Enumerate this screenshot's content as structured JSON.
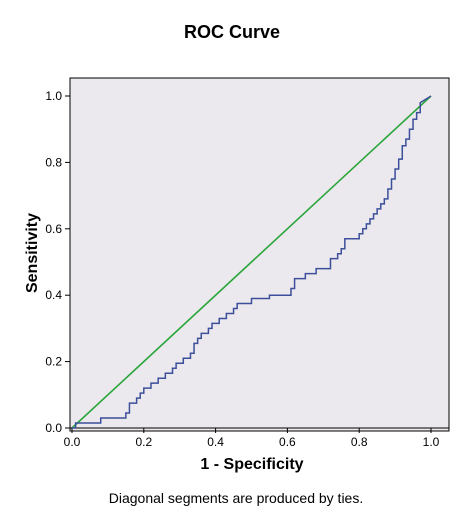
{
  "chart_data": {
    "type": "line",
    "title": "ROC Curve",
    "xlabel": "1 - Specificity",
    "ylabel": "Sensitivity",
    "footnote": "Diagonal segments are produced by ties.",
    "xlim": [
      0,
      1
    ],
    "ylim": [
      0,
      1
    ],
    "x_ticks": [
      "0.0",
      "0.2",
      "0.4",
      "0.6",
      "0.8",
      "1.0"
    ],
    "y_ticks": [
      "0.0",
      "0.2",
      "0.4",
      "0.6",
      "0.8",
      "1.0"
    ],
    "grid": false,
    "plot_background": "#ece9ee",
    "series": [
      {
        "kind": "roc",
        "color": "#3b4f9a",
        "x": [
          0.0,
          0.01,
          0.01,
          0.08,
          0.08,
          0.15,
          0.15,
          0.16,
          0.16,
          0.18,
          0.18,
          0.19,
          0.19,
          0.2,
          0.2,
          0.22,
          0.22,
          0.24,
          0.24,
          0.26,
          0.26,
          0.28,
          0.28,
          0.29,
          0.29,
          0.31,
          0.31,
          0.33,
          0.33,
          0.34,
          0.34,
          0.35,
          0.35,
          0.36,
          0.36,
          0.38,
          0.38,
          0.39,
          0.39,
          0.41,
          0.41,
          0.43,
          0.43,
          0.45,
          0.45,
          0.46,
          0.46,
          0.5,
          0.5,
          0.55,
          0.55,
          0.61,
          0.61,
          0.62,
          0.62,
          0.65,
          0.65,
          0.68,
          0.68,
          0.72,
          0.72,
          0.74,
          0.74,
          0.75,
          0.75,
          0.76,
          0.76,
          0.8,
          0.8,
          0.81,
          0.81,
          0.82,
          0.82,
          0.83,
          0.83,
          0.84,
          0.84,
          0.85,
          0.85,
          0.86,
          0.86,
          0.87,
          0.87,
          0.88,
          0.88,
          0.89,
          0.89,
          0.9,
          0.9,
          0.91,
          0.91,
          0.92,
          0.92,
          0.93,
          0.93,
          0.94,
          0.94,
          0.95,
          0.95,
          0.96,
          0.96,
          0.97,
          0.97,
          1.0
        ],
        "y": [
          0.0,
          0.0,
          0.015,
          0.015,
          0.03,
          0.03,
          0.045,
          0.045,
          0.075,
          0.075,
          0.09,
          0.09,
          0.105,
          0.105,
          0.12,
          0.12,
          0.135,
          0.135,
          0.15,
          0.15,
          0.165,
          0.165,
          0.18,
          0.18,
          0.195,
          0.195,
          0.21,
          0.21,
          0.225,
          0.225,
          0.255,
          0.255,
          0.27,
          0.27,
          0.285,
          0.285,
          0.3,
          0.3,
          0.315,
          0.315,
          0.33,
          0.33,
          0.345,
          0.345,
          0.36,
          0.36,
          0.375,
          0.375,
          0.39,
          0.39,
          0.4,
          0.4,
          0.42,
          0.42,
          0.45,
          0.45,
          0.465,
          0.465,
          0.48,
          0.48,
          0.51,
          0.51,
          0.525,
          0.525,
          0.54,
          0.54,
          0.57,
          0.57,
          0.585,
          0.585,
          0.6,
          0.6,
          0.615,
          0.615,
          0.63,
          0.63,
          0.645,
          0.645,
          0.66,
          0.66,
          0.675,
          0.675,
          0.69,
          0.69,
          0.72,
          0.72,
          0.75,
          0.75,
          0.78,
          0.78,
          0.81,
          0.81,
          0.85,
          0.85,
          0.87,
          0.87,
          0.9,
          0.9,
          0.93,
          0.93,
          0.95,
          0.95,
          0.98,
          1.0
        ]
      },
      {
        "kind": "reference",
        "color": "#2aa63a",
        "x": [
          0,
          1
        ],
        "y": [
          0,
          1
        ]
      }
    ]
  }
}
